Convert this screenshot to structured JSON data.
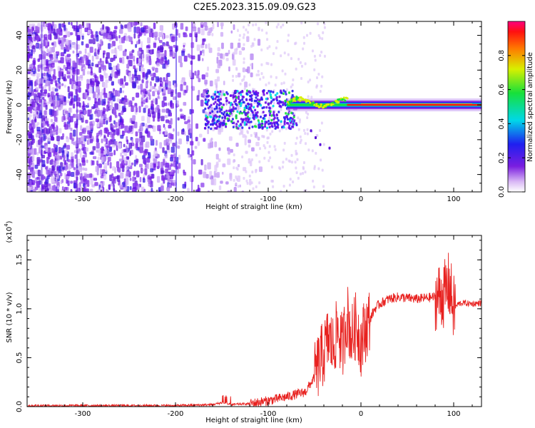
{
  "title": "C2E5.2023.315.09.09.G23",
  "colors": {
    "snr_line": "#e8211f",
    "axis": "#000000"
  },
  "chart_data": [
    {
      "type": "heatmap",
      "xlabel": "Height of straight line (km)",
      "ylabel": "Frequency (Hz)",
      "xlim": [
        -360,
        130
      ],
      "ylim": [
        -50,
        48
      ],
      "x_ticks": [
        -300,
        -200,
        -100,
        0,
        100
      ],
      "y_ticks": [
        -40,
        -20,
        0,
        20,
        40
      ],
      "colorbar": {
        "label": "Normalized spectral amplitude",
        "range": [
          0,
          1
        ],
        "ticks": [
          "0.0",
          "0.2",
          "0.4",
          "0.6",
          "0.8"
        ],
        "colormap": "rainbow (purple → blue → cyan → green → yellow → red)"
      },
      "features": {
        "noise_region_x": [
          -360,
          -120
        ],
        "carrier_band_x": [
          -80,
          130
        ],
        "carrier_frequency": 0,
        "carrier_amplitude_range": [
          0.4,
          1.0
        ]
      },
      "grid": false
    },
    {
      "type": "line",
      "title": "",
      "xlabel": "Height of straight line (km)",
      "ylabel": "SNR (10 * v/v)",
      "scale_label": "(x10^4)",
      "xlim": [
        -360,
        130
      ],
      "ylim": [
        0,
        1.75
      ],
      "x_ticks": [
        -300,
        -200,
        -100,
        0,
        100
      ],
      "y_ticks": [
        0.0,
        0.5,
        1.0,
        1.5
      ],
      "series": [
        {
          "x": [
            -360,
            -300,
            -250,
            -200,
            -160,
            -150,
            -140,
            -120,
            -100,
            -80,
            -60,
            -50,
            -45,
            -40,
            -35,
            -30,
            -25,
            -20,
            -15,
            -10,
            -5,
            0,
            5,
            10,
            15,
            20,
            30,
            40,
            60,
            80,
            90,
            95,
            100,
            105,
            110,
            120,
            130
          ],
          "y": [
            0.01,
            0.01,
            0.01,
            0.01,
            0.02,
            0.04,
            0.02,
            0.03,
            0.06,
            0.1,
            0.15,
            0.3,
            0.45,
            0.55,
            0.7,
            0.6,
            0.8,
            0.6,
            0.95,
            0.7,
            0.85,
            0.65,
            0.8,
            0.9,
            1.0,
            1.05,
            1.1,
            1.12,
            1.1,
            1.12,
            1.15,
            1.25,
            1.0,
            1.05,
            1.06,
            1.05,
            1.06
          ]
        }
      ],
      "grid": false
    }
  ]
}
